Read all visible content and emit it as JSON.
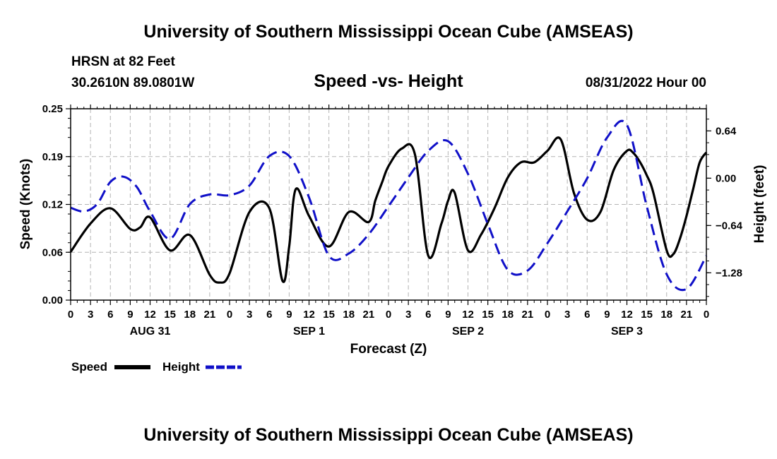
{
  "page": {
    "title_top": "University of Southern Mississippi Ocean Cube (AMSEAS)",
    "title_bottom": "University of Southern Mississippi Ocean Cube (AMSEAS)",
    "station": "HRSN at 82 Feet",
    "coords": "30.2610N  89.0801W",
    "datetime": "08/31/2022 Hour 00"
  },
  "chart_data": {
    "type": "line",
    "title": "Speed -vs- Height",
    "xlabel": "Forecast (Z)",
    "ylabel": "Speed (Knots)",
    "y2label": "Height (feet)",
    "xlim": [
      0,
      96
    ],
    "ylim": [
      0,
      0.25
    ],
    "y2lim": [
      -1.65,
      0.94
    ],
    "y_ticks": [
      "0.00",
      "0.06",
      "0.12",
      "0.19",
      "0.25"
    ],
    "y_tick_values": [
      0,
      0.0625,
      0.125,
      0.1875,
      0.25
    ],
    "y2_ticks": [
      "−1.28",
      "−0.64",
      "0.00",
      "0.64"
    ],
    "y2_tick_values": [
      -1.28,
      -0.64,
      0,
      0.64
    ],
    "x_tick_labels": [
      "0",
      "3",
      "6",
      "9",
      "12",
      "15",
      "18",
      "21",
      "0",
      "3",
      "6",
      "9",
      "12",
      "15",
      "18",
      "21",
      "0",
      "3",
      "6",
      "9",
      "12",
      "15",
      "18",
      "21",
      "0",
      "3",
      "6",
      "9",
      "12",
      "15",
      "18",
      "21",
      "0"
    ],
    "day_labels": [
      {
        "label": "AUG 31",
        "hour": 12
      },
      {
        "label": "SEP 1",
        "hour": 36
      },
      {
        "label": "SEP 2",
        "hour": 60
      },
      {
        "label": "SEP 3",
        "hour": 84
      }
    ],
    "grid": true,
    "legend": [
      "Speed",
      "Height"
    ],
    "series": [
      {
        "name": "Speed",
        "color": "#000000",
        "axis": "left",
        "x": [
          0,
          3,
          6,
          9,
          10.5,
          12,
          15,
          18,
          21,
          22.5,
          24,
          27,
          30,
          32,
          33,
          34,
          36,
          39,
          42,
          45,
          46,
          47,
          48,
          50,
          52,
          54,
          56,
          57,
          58,
          60,
          62,
          64,
          66,
          68,
          70,
          72,
          74,
          76,
          78,
          80,
          82,
          84,
          85,
          86,
          87,
          88,
          90,
          91,
          92,
          93,
          94,
          95,
          96
        ],
        "y": [
          0.063,
          0.1,
          0.12,
          0.093,
          0.095,
          0.108,
          0.065,
          0.085,
          0.033,
          0.023,
          0.035,
          0.115,
          0.12,
          0.025,
          0.07,
          0.145,
          0.11,
          0.07,
          0.115,
          0.102,
          0.13,
          0.153,
          0.175,
          0.198,
          0.19,
          0.058,
          0.1,
          0.13,
          0.14,
          0.065,
          0.086,
          0.12,
          0.16,
          0.18,
          0.18,
          0.195,
          0.21,
          0.14,
          0.105,
          0.115,
          0.17,
          0.195,
          0.192,
          0.18,
          0.163,
          0.14,
          0.065,
          0.06,
          0.08,
          0.11,
          0.145,
          0.18,
          0.193
        ]
      },
      {
        "name": "Height",
        "color": "#1010c8",
        "axis": "right",
        "x": [
          0,
          2,
          4,
          6,
          8,
          10,
          12,
          15,
          18,
          21,
          24,
          27,
          30,
          33,
          36,
          39,
          42,
          45,
          48,
          51,
          54,
          57,
          60,
          63,
          66,
          69,
          72,
          75,
          78,
          81,
          84,
          87,
          90,
          93,
          96
        ],
        "y": [
          -0.4,
          -0.45,
          -0.35,
          -0.05,
          0.02,
          -0.12,
          -0.45,
          -0.82,
          -0.35,
          -0.22,
          -0.23,
          -0.1,
          0.3,
          0.3,
          -0.26,
          -1.05,
          -1.02,
          -0.76,
          -0.38,
          0.01,
          0.37,
          0.5,
          0.06,
          -0.62,
          -1.24,
          -1.25,
          -0.88,
          -0.45,
          0.0,
          0.55,
          0.72,
          -0.38,
          -1.3,
          -1.5,
          -1.05
        ]
      }
    ]
  }
}
